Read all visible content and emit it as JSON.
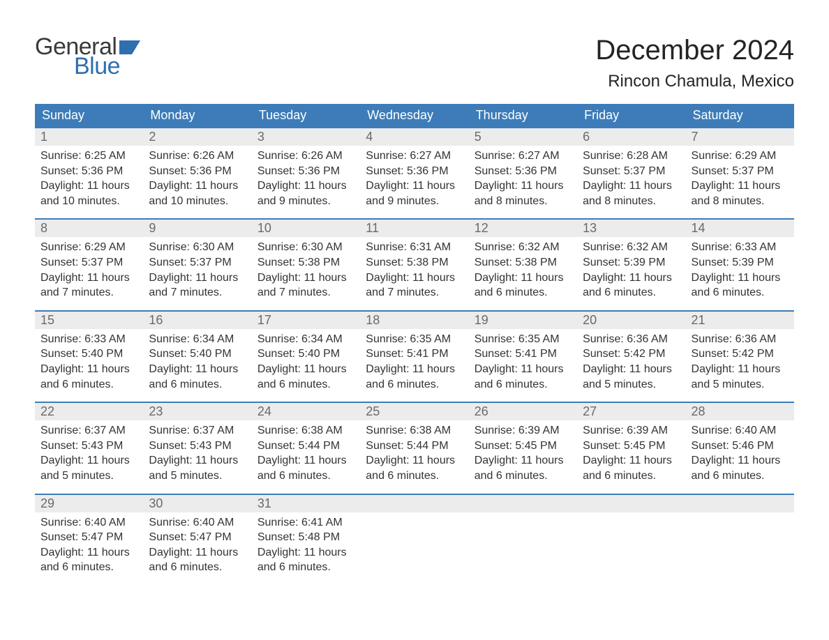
{
  "brand": {
    "word1": "General",
    "word2": "Blue",
    "flag_color": "#2f6fb0",
    "word1_color": "#3a3a3a",
    "word2_color": "#2f6fb0"
  },
  "title": "December 2024",
  "location": "Rincon Chamula, Mexico",
  "colors": {
    "header_bg": "#3d7cb8",
    "header_text": "#ffffff",
    "daynum_bg": "#ececec",
    "daynum_text": "#6a6a6a",
    "body_text": "#333333",
    "week_border": "#3d7cb8",
    "page_bg": "#ffffff"
  },
  "fonts": {
    "title_size_pt": 30,
    "location_size_pt": 18,
    "dow_size_pt": 14,
    "daynum_size_pt": 14,
    "body_size_pt": 12
  },
  "days_of_week": [
    "Sunday",
    "Monday",
    "Tuesday",
    "Wednesday",
    "Thursday",
    "Friday",
    "Saturday"
  ],
  "weeks": [
    [
      {
        "num": "1",
        "sunrise": "Sunrise: 6:25 AM",
        "sunset": "Sunset: 5:36 PM",
        "daylight1": "Daylight: 11 hours",
        "daylight2": "and 10 minutes."
      },
      {
        "num": "2",
        "sunrise": "Sunrise: 6:26 AM",
        "sunset": "Sunset: 5:36 PM",
        "daylight1": "Daylight: 11 hours",
        "daylight2": "and 10 minutes."
      },
      {
        "num": "3",
        "sunrise": "Sunrise: 6:26 AM",
        "sunset": "Sunset: 5:36 PM",
        "daylight1": "Daylight: 11 hours",
        "daylight2": "and 9 minutes."
      },
      {
        "num": "4",
        "sunrise": "Sunrise: 6:27 AM",
        "sunset": "Sunset: 5:36 PM",
        "daylight1": "Daylight: 11 hours",
        "daylight2": "and 9 minutes."
      },
      {
        "num": "5",
        "sunrise": "Sunrise: 6:27 AM",
        "sunset": "Sunset: 5:36 PM",
        "daylight1": "Daylight: 11 hours",
        "daylight2": "and 8 minutes."
      },
      {
        "num": "6",
        "sunrise": "Sunrise: 6:28 AM",
        "sunset": "Sunset: 5:37 PM",
        "daylight1": "Daylight: 11 hours",
        "daylight2": "and 8 minutes."
      },
      {
        "num": "7",
        "sunrise": "Sunrise: 6:29 AM",
        "sunset": "Sunset: 5:37 PM",
        "daylight1": "Daylight: 11 hours",
        "daylight2": "and 8 minutes."
      }
    ],
    [
      {
        "num": "8",
        "sunrise": "Sunrise: 6:29 AM",
        "sunset": "Sunset: 5:37 PM",
        "daylight1": "Daylight: 11 hours",
        "daylight2": "and 7 minutes."
      },
      {
        "num": "9",
        "sunrise": "Sunrise: 6:30 AM",
        "sunset": "Sunset: 5:37 PM",
        "daylight1": "Daylight: 11 hours",
        "daylight2": "and 7 minutes."
      },
      {
        "num": "10",
        "sunrise": "Sunrise: 6:30 AM",
        "sunset": "Sunset: 5:38 PM",
        "daylight1": "Daylight: 11 hours",
        "daylight2": "and 7 minutes."
      },
      {
        "num": "11",
        "sunrise": "Sunrise: 6:31 AM",
        "sunset": "Sunset: 5:38 PM",
        "daylight1": "Daylight: 11 hours",
        "daylight2": "and 7 minutes."
      },
      {
        "num": "12",
        "sunrise": "Sunrise: 6:32 AM",
        "sunset": "Sunset: 5:38 PM",
        "daylight1": "Daylight: 11 hours",
        "daylight2": "and 6 minutes."
      },
      {
        "num": "13",
        "sunrise": "Sunrise: 6:32 AM",
        "sunset": "Sunset: 5:39 PM",
        "daylight1": "Daylight: 11 hours",
        "daylight2": "and 6 minutes."
      },
      {
        "num": "14",
        "sunrise": "Sunrise: 6:33 AM",
        "sunset": "Sunset: 5:39 PM",
        "daylight1": "Daylight: 11 hours",
        "daylight2": "and 6 minutes."
      }
    ],
    [
      {
        "num": "15",
        "sunrise": "Sunrise: 6:33 AM",
        "sunset": "Sunset: 5:40 PM",
        "daylight1": "Daylight: 11 hours",
        "daylight2": "and 6 minutes."
      },
      {
        "num": "16",
        "sunrise": "Sunrise: 6:34 AM",
        "sunset": "Sunset: 5:40 PM",
        "daylight1": "Daylight: 11 hours",
        "daylight2": "and 6 minutes."
      },
      {
        "num": "17",
        "sunrise": "Sunrise: 6:34 AM",
        "sunset": "Sunset: 5:40 PM",
        "daylight1": "Daylight: 11 hours",
        "daylight2": "and 6 minutes."
      },
      {
        "num": "18",
        "sunrise": "Sunrise: 6:35 AM",
        "sunset": "Sunset: 5:41 PM",
        "daylight1": "Daylight: 11 hours",
        "daylight2": "and 6 minutes."
      },
      {
        "num": "19",
        "sunrise": "Sunrise: 6:35 AM",
        "sunset": "Sunset: 5:41 PM",
        "daylight1": "Daylight: 11 hours",
        "daylight2": "and 6 minutes."
      },
      {
        "num": "20",
        "sunrise": "Sunrise: 6:36 AM",
        "sunset": "Sunset: 5:42 PM",
        "daylight1": "Daylight: 11 hours",
        "daylight2": "and 5 minutes."
      },
      {
        "num": "21",
        "sunrise": "Sunrise: 6:36 AM",
        "sunset": "Sunset: 5:42 PM",
        "daylight1": "Daylight: 11 hours",
        "daylight2": "and 5 minutes."
      }
    ],
    [
      {
        "num": "22",
        "sunrise": "Sunrise: 6:37 AM",
        "sunset": "Sunset: 5:43 PM",
        "daylight1": "Daylight: 11 hours",
        "daylight2": "and 5 minutes."
      },
      {
        "num": "23",
        "sunrise": "Sunrise: 6:37 AM",
        "sunset": "Sunset: 5:43 PM",
        "daylight1": "Daylight: 11 hours",
        "daylight2": "and 5 minutes."
      },
      {
        "num": "24",
        "sunrise": "Sunrise: 6:38 AM",
        "sunset": "Sunset: 5:44 PM",
        "daylight1": "Daylight: 11 hours",
        "daylight2": "and 6 minutes."
      },
      {
        "num": "25",
        "sunrise": "Sunrise: 6:38 AM",
        "sunset": "Sunset: 5:44 PM",
        "daylight1": "Daylight: 11 hours",
        "daylight2": "and 6 minutes."
      },
      {
        "num": "26",
        "sunrise": "Sunrise: 6:39 AM",
        "sunset": "Sunset: 5:45 PM",
        "daylight1": "Daylight: 11 hours",
        "daylight2": "and 6 minutes."
      },
      {
        "num": "27",
        "sunrise": "Sunrise: 6:39 AM",
        "sunset": "Sunset: 5:45 PM",
        "daylight1": "Daylight: 11 hours",
        "daylight2": "and 6 minutes."
      },
      {
        "num": "28",
        "sunrise": "Sunrise: 6:40 AM",
        "sunset": "Sunset: 5:46 PM",
        "daylight1": "Daylight: 11 hours",
        "daylight2": "and 6 minutes."
      }
    ],
    [
      {
        "num": "29",
        "sunrise": "Sunrise: 6:40 AM",
        "sunset": "Sunset: 5:47 PM",
        "daylight1": "Daylight: 11 hours",
        "daylight2": "and 6 minutes."
      },
      {
        "num": "30",
        "sunrise": "Sunrise: 6:40 AM",
        "sunset": "Sunset: 5:47 PM",
        "daylight1": "Daylight: 11 hours",
        "daylight2": "and 6 minutes."
      },
      {
        "num": "31",
        "sunrise": "Sunrise: 6:41 AM",
        "sunset": "Sunset: 5:48 PM",
        "daylight1": "Daylight: 11 hours",
        "daylight2": "and 6 minutes."
      },
      null,
      null,
      null,
      null
    ]
  ]
}
